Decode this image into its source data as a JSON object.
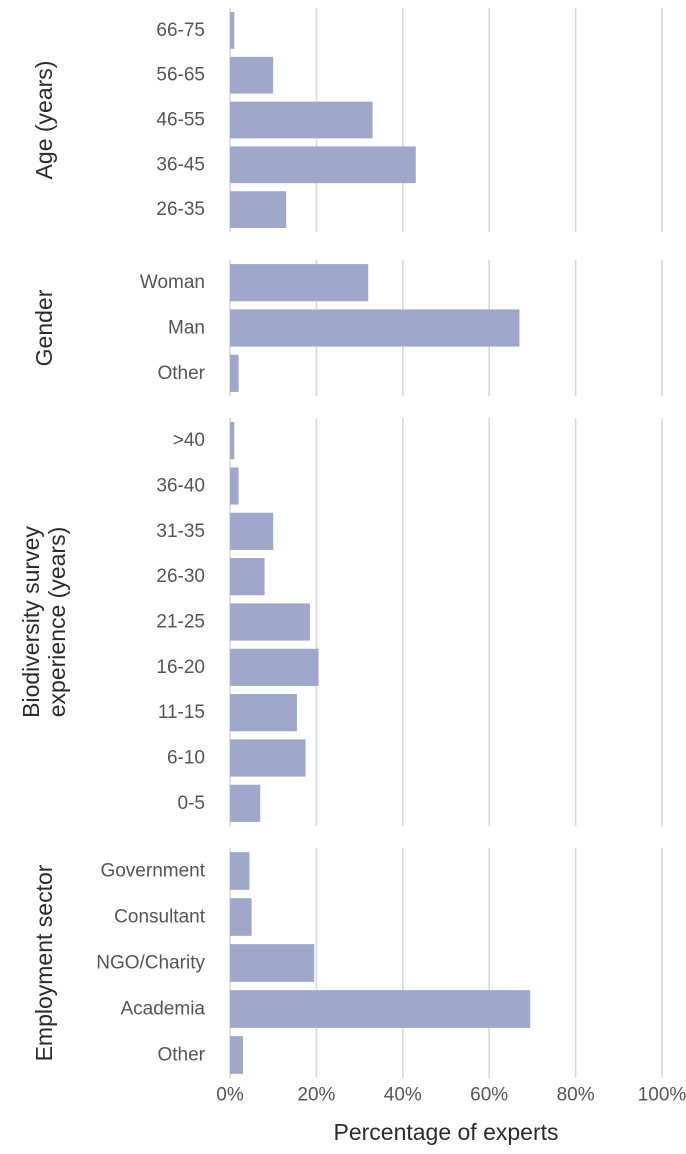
{
  "chart_data": {
    "type": "bar",
    "orientation": "horizontal",
    "xlabel": "Percentage of experts",
    "xlim": [
      0,
      100
    ],
    "x_ticks": [
      "0%",
      "20%",
      "40%",
      "60%",
      "80%",
      "100%"
    ],
    "grid": true,
    "bar_color": "#9fa8cb",
    "facets": [
      {
        "title": [
          "Age (years)"
        ],
        "categories": [
          "66-75",
          "56-65",
          "46-55",
          "36-45",
          "26-35"
        ],
        "values": [
          1,
          10,
          33,
          43,
          13
        ]
      },
      {
        "title": [
          "Gender"
        ],
        "categories": [
          "Woman",
          "Man",
          "Other"
        ],
        "values": [
          32,
          67,
          2
        ]
      },
      {
        "title": [
          "Biodiversity survey",
          "experience (years)"
        ],
        "categories": [
          ">40",
          "36-40",
          "31-35",
          "26-30",
          "21-25",
          "16-20",
          "11-15",
          "6-10",
          "0-5"
        ],
        "values": [
          1,
          2,
          10,
          8,
          18.5,
          20.5,
          15.5,
          17.5,
          7
        ]
      },
      {
        "title": [
          "Employment sector"
        ],
        "categories": [
          "Government",
          "Consultant",
          "NGO/Charity",
          "Academia",
          "Other"
        ],
        "values": [
          4.5,
          5,
          19.5,
          69.5,
          3
        ]
      }
    ]
  }
}
